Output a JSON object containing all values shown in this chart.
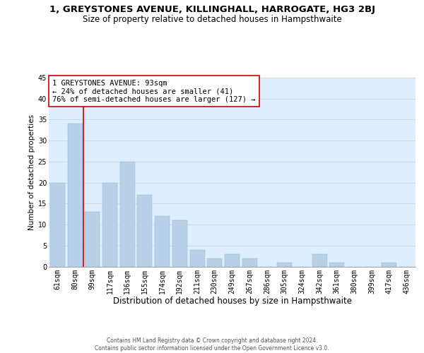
{
  "title_line1": "1, GREYSTONES AVENUE, KILLINGHALL, HARROGATE, HG3 2BJ",
  "title_line2": "Size of property relative to detached houses in Hampsthwaite",
  "xlabel": "Distribution of detached houses by size in Hampsthwaite",
  "ylabel": "Number of detached properties",
  "categories": [
    "61sqm",
    "80sqm",
    "99sqm",
    "117sqm",
    "136sqm",
    "155sqm",
    "174sqm",
    "192sqm",
    "211sqm",
    "230sqm",
    "249sqm",
    "267sqm",
    "286sqm",
    "305sqm",
    "324sqm",
    "342sqm",
    "361sqm",
    "380sqm",
    "399sqm",
    "417sqm",
    "436sqm"
  ],
  "values": [
    20,
    34,
    13,
    20,
    25,
    17,
    12,
    11,
    4,
    2,
    3,
    2,
    0,
    1,
    0,
    3,
    1,
    0,
    0,
    1,
    0
  ],
  "bar_color": "#b8d0e8",
  "bar_edge_color": "#b8d0e8",
  "vline_x_index": 2,
  "vline_color": "#cc0000",
  "annotation_line1": "1 GREYSTONES AVENUE: 93sqm",
  "annotation_line2": "← 24% of detached houses are smaller (41)",
  "annotation_line3": "76% of semi-detached houses are larger (127) →",
  "annotation_box_color": "#ffffff",
  "annotation_box_edge": "#cc0000",
  "ylim": [
    0,
    45
  ],
  "yticks": [
    0,
    5,
    10,
    15,
    20,
    25,
    30,
    35,
    40,
    45
  ],
  "grid_color": "#c8daea",
  "background_color": "#ddeeff",
  "footer_text": "Contains HM Land Registry data © Crown copyright and database right 2024.\nContains public sector information licensed under the Open Government Licence v3.0.",
  "title_fontsize": 9.5,
  "subtitle_fontsize": 8.5,
  "xlabel_fontsize": 8.5,
  "ylabel_fontsize": 7.5,
  "tick_fontsize": 7,
  "annotation_fontsize": 7.5,
  "footer_fontsize": 5.5
}
